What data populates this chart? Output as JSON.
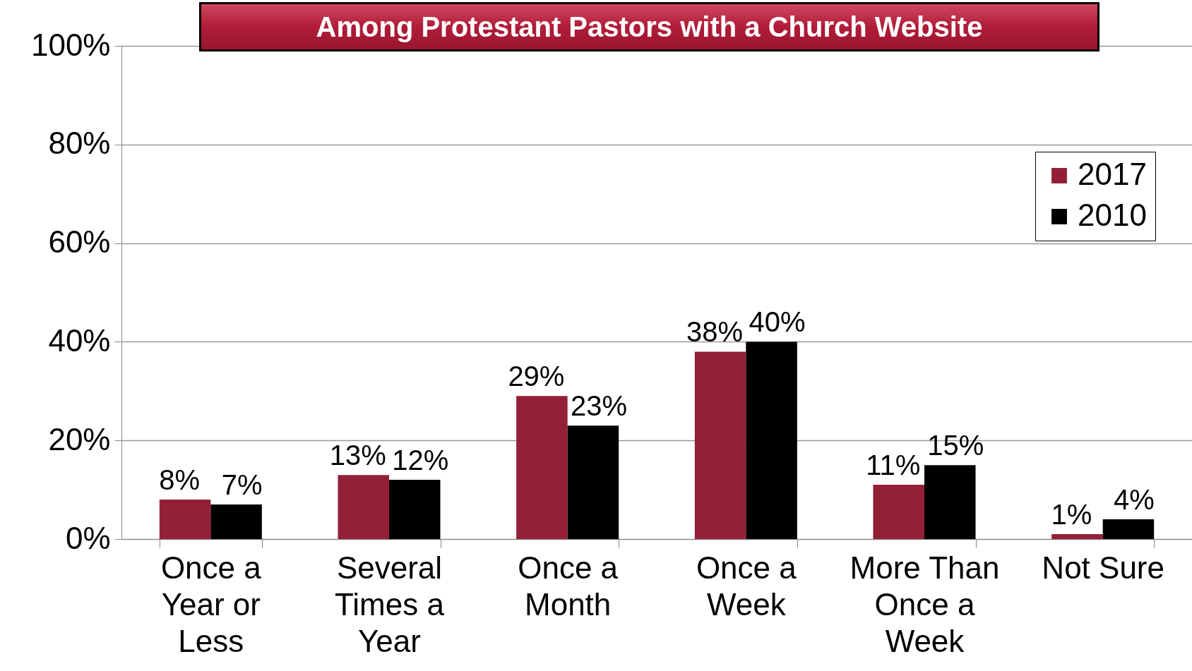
{
  "chart_data": {
    "type": "bar",
    "title": "Among Protestant Pastors with a Church Website",
    "categories": [
      "Once a Year or Less",
      "Several Times a Year",
      "Once a Month",
      "Once a Week",
      "More Than Once a Week",
      "Not Sure"
    ],
    "series": [
      {
        "name": "2017",
        "color": "#942037",
        "values": [
          8,
          13,
          29,
          38,
          11,
          1
        ],
        "value_labels": [
          "8%",
          "13%",
          "29%",
          "38%",
          "11%",
          "1%"
        ]
      },
      {
        "name": "2010",
        "color": "#000000",
        "values": [
          7,
          12,
          23,
          40,
          15,
          4
        ],
        "value_labels": [
          "7%",
          "12%",
          "23%",
          "40%",
          "15%",
          "4%"
        ]
      }
    ],
    "ylim": [
      0,
      100
    ],
    "yticks": [
      {
        "value": 0,
        "label": "0%"
      },
      {
        "value": 20,
        "label": "20%"
      },
      {
        "value": 40,
        "label": "40%"
      },
      {
        "value": 60,
        "label": "60%"
      },
      {
        "value": 80,
        "label": "80%"
      },
      {
        "value": 100,
        "label": "100%"
      }
    ],
    "grid": "y",
    "legend": "top right"
  }
}
